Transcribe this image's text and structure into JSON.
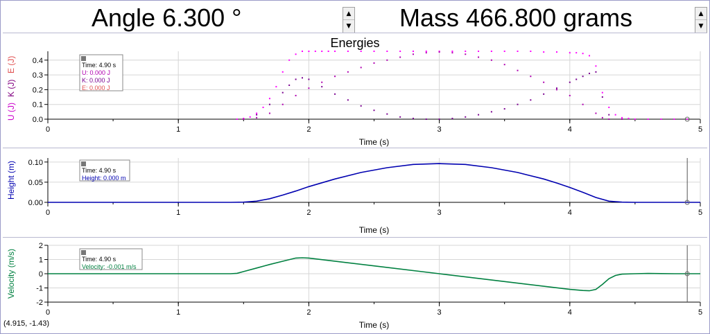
{
  "toolbar": {
    "angle_label": "Angle 6.300 °",
    "mass_label": "Mass 466.800 grams",
    "spin_up": "▲",
    "spin_down": "▼"
  },
  "status": {
    "cursor_readout": "(4.915, -1.43)"
  },
  "colors": {
    "potential": "#b000b0",
    "kinetic": "#7a0090",
    "total": "#ff00ff",
    "height": "#0000b0",
    "velocity": "#008040",
    "energy_ylabel_u": "#cc00cc",
    "energy_ylabel_k": "#800080",
    "energy_ylabel_e": "#e05050"
  },
  "chart_data": [
    {
      "type": "scatter",
      "title": "Energies",
      "xlabel": "Time (s)",
      "ylabel_parts": [
        "U (J)",
        "K (J)",
        "E (J)"
      ],
      "xlim": [
        0,
        5
      ],
      "ylim": [
        0,
        0.46
      ],
      "xticks": [
        "0",
        "1",
        "2",
        "3",
        "4",
        "5"
      ],
      "yticks": [
        "0.0",
        "0.1",
        "0.2",
        "0.3",
        "0.4"
      ],
      "grid": true,
      "legend": {
        "time": "Time: 4.90 s",
        "entries": [
          "U: 0.000 J",
          "K: 0.000 J",
          "E: 0.000 J"
        ]
      },
      "series": [
        {
          "name": "E",
          "x": [
            1.45,
            1.5,
            1.55,
            1.6,
            1.65,
            1.7,
            1.75,
            1.8,
            1.85,
            1.9,
            1.95,
            2.0,
            2.05,
            2.1,
            2.15,
            2.2,
            2.3,
            2.4,
            2.5,
            2.6,
            2.7,
            2.8,
            2.9,
            3.0,
            3.1,
            3.2,
            3.3,
            3.4,
            3.5,
            3.6,
            3.7,
            3.8,
            3.9,
            4.0,
            4.05,
            4.1,
            4.15,
            4.2,
            4.25,
            4.3,
            4.35,
            4.4,
            4.45,
            4.5,
            4.6,
            4.7,
            4.8,
            4.9
          ],
          "y": [
            0.0,
            0.005,
            0.015,
            0.04,
            0.08,
            0.14,
            0.22,
            0.32,
            0.4,
            0.44,
            0.46,
            0.46,
            0.46,
            0.46,
            0.46,
            0.46,
            0.46,
            0.46,
            0.46,
            0.46,
            0.46,
            0.46,
            0.46,
            0.46,
            0.46,
            0.46,
            0.46,
            0.46,
            0.46,
            0.46,
            0.46,
            0.455,
            0.455,
            0.45,
            0.45,
            0.445,
            0.43,
            0.36,
            0.18,
            0.08,
            0.03,
            0.01,
            0.005,
            0.0,
            0.0,
            0.0,
            0.0,
            0.0
          ]
        },
        {
          "name": "U",
          "x": [
            1.5,
            1.6,
            1.7,
            1.8,
            1.9,
            2.0,
            2.1,
            2.2,
            2.3,
            2.4,
            2.5,
            2.6,
            2.7,
            2.8,
            2.9,
            3.0,
            3.1,
            3.2,
            3.3,
            3.4,
            3.5,
            3.6,
            3.7,
            3.8,
            3.9,
            4.0,
            4.1,
            4.2,
            4.25,
            4.3,
            4.4
          ],
          "y": [
            0.0,
            0.01,
            0.04,
            0.1,
            0.16,
            0.21,
            0.25,
            0.29,
            0.32,
            0.35,
            0.38,
            0.4,
            0.42,
            0.44,
            0.45,
            0.455,
            0.45,
            0.44,
            0.42,
            0.4,
            0.37,
            0.33,
            0.29,
            0.25,
            0.2,
            0.16,
            0.1,
            0.04,
            0.01,
            0.0,
            0.0
          ]
        },
        {
          "name": "K",
          "x": [
            1.6,
            1.7,
            1.8,
            1.85,
            1.9,
            1.95,
            2.0,
            2.1,
            2.2,
            2.3,
            2.4,
            2.5,
            2.6,
            2.7,
            2.8,
            2.9,
            3.0,
            3.1,
            3.2,
            3.3,
            3.4,
            3.5,
            3.6,
            3.7,
            3.8,
            3.9,
            4.0,
            4.05,
            4.1,
            4.15,
            4.2,
            4.25,
            4.3
          ],
          "y": [
            0.03,
            0.1,
            0.18,
            0.23,
            0.27,
            0.28,
            0.27,
            0.22,
            0.17,
            0.13,
            0.09,
            0.06,
            0.035,
            0.015,
            0.005,
            0.0,
            0.0,
            0.005,
            0.015,
            0.03,
            0.05,
            0.07,
            0.1,
            0.13,
            0.17,
            0.21,
            0.25,
            0.27,
            0.29,
            0.31,
            0.32,
            0.15,
            0.03
          ]
        }
      ]
    },
    {
      "type": "line",
      "xlabel": "Time (s)",
      "ylabel": "Height (m)",
      "xlim": [
        0,
        5
      ],
      "ylim": [
        0,
        0.11
      ],
      "xticks": [
        "0",
        "1",
        "2",
        "3",
        "4",
        "5"
      ],
      "yticks": [
        "0.00",
        "0.05",
        "0.10"
      ],
      "grid": true,
      "legend": {
        "time": "Time: 4.90 s",
        "entries": [
          "Height: 0.000 m"
        ]
      },
      "series": [
        {
          "name": "Height",
          "x": [
            0,
            1.4,
            1.5,
            1.6,
            1.7,
            1.8,
            1.9,
            2.0,
            2.2,
            2.4,
            2.6,
            2.8,
            3.0,
            3.2,
            3.4,
            3.6,
            3.8,
            3.9,
            4.0,
            4.1,
            4.2,
            4.3,
            4.4,
            4.5,
            5.0
          ],
          "y": [
            0,
            0,
            0.0005,
            0.003,
            0.009,
            0.018,
            0.028,
            0.039,
            0.058,
            0.074,
            0.086,
            0.094,
            0.096,
            0.094,
            0.086,
            0.074,
            0.058,
            0.048,
            0.037,
            0.025,
            0.012,
            0.003,
            0.0005,
            0,
            0
          ]
        }
      ]
    },
    {
      "type": "line",
      "xlabel": "Time (s)",
      "ylabel": "Velocity (m/s)",
      "xlim": [
        0,
        5
      ],
      "ylim": [
        -2,
        2
      ],
      "xticks": [
        "0",
        "1",
        "2",
        "3",
        "4",
        "5"
      ],
      "yticks": [
        "-2",
        "-1",
        "0",
        "1",
        "2"
      ],
      "grid": true,
      "legend": {
        "time": "Time: 4.90 s",
        "entries": [
          "Velocity: -0.001 m/s"
        ]
      },
      "series": [
        {
          "name": "Velocity",
          "x": [
            0,
            1.4,
            1.45,
            1.5,
            1.6,
            1.7,
            1.8,
            1.9,
            1.95,
            2.0,
            2.5,
            3.0,
            3.5,
            4.0,
            4.1,
            4.15,
            4.2,
            4.25,
            4.3,
            4.35,
            4.4,
            4.5,
            4.6,
            4.7,
            4.8,
            5.0
          ],
          "y": [
            0,
            0,
            0.03,
            0.15,
            0.4,
            0.65,
            0.88,
            1.1,
            1.12,
            1.1,
            0.55,
            0.0,
            -0.55,
            -1.1,
            -1.18,
            -1.2,
            -1.1,
            -0.75,
            -0.35,
            -0.12,
            -0.03,
            0.0,
            0.02,
            0.01,
            0.0,
            0.0
          ]
        }
      ]
    }
  ]
}
